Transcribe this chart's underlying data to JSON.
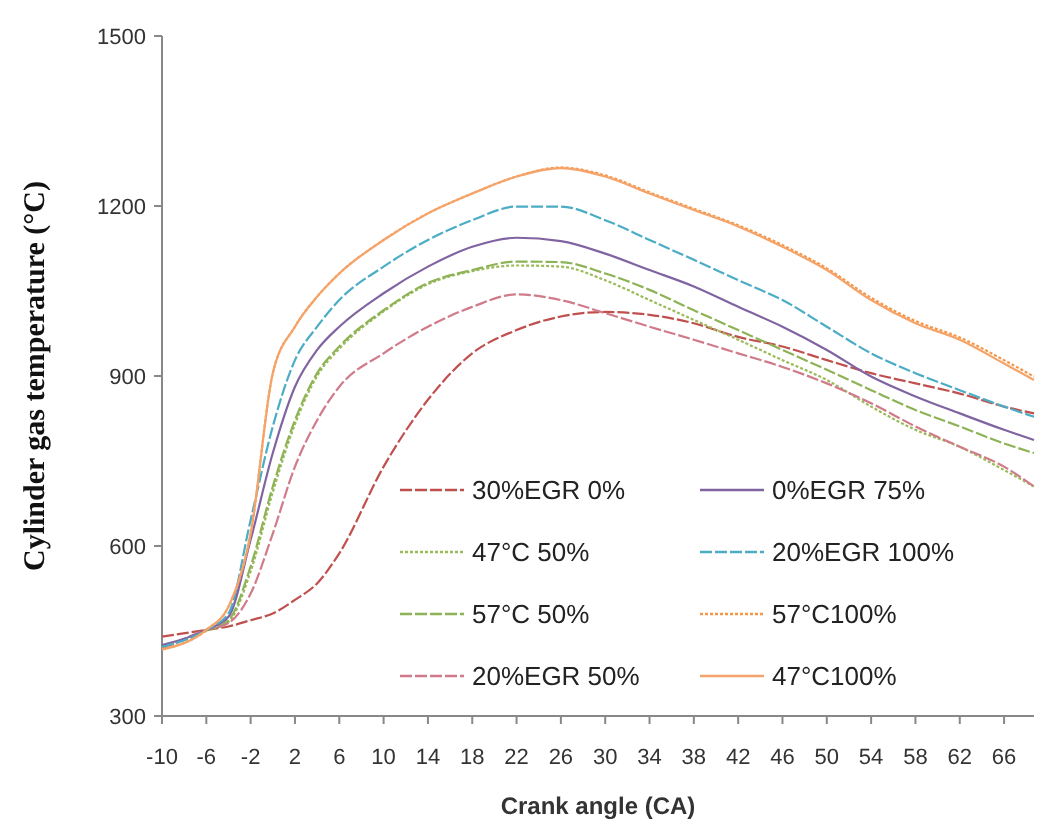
{
  "chart_data": {
    "type": "line",
    "xlabel": "Crank angle (CA)",
    "ylabel": "Cylinder gas temperature (°C)",
    "x": [
      -10,
      -6,
      -4,
      -2,
      0,
      2,
      4,
      6,
      10,
      14,
      18,
      22,
      26,
      30,
      34,
      38,
      42,
      46,
      50,
      54,
      58,
      62,
      66,
      68.7
    ],
    "xlim": [
      -10,
      68.7
    ],
    "xticks": [
      -10,
      -6,
      -2,
      2,
      6,
      10,
      14,
      18,
      22,
      26,
      30,
      34,
      38,
      42,
      46,
      50,
      54,
      58,
      62,
      66
    ],
    "ylim": [
      300,
      1500
    ],
    "yticks": [
      300,
      600,
      900,
      1200,
      1500
    ],
    "grid": false,
    "legend": "bottom right",
    "series": [
      {
        "name": "30%EGR 0%",
        "color": "#c0504d",
        "line_style": "dashed",
        "values": [
          440,
          452,
          458,
          469,
          481,
          505,
          534,
          587,
          740,
          858,
          940,
          981,
          1005,
          1013,
          1008,
          993,
          969,
          952,
          928,
          905,
          887,
          869,
          846,
          834
        ]
      },
      {
        "name": "47°C 50%",
        "color": "#9bbb59",
        "line_style": "dotted",
        "values": [
          420,
          450,
          466,
          555,
          695,
          815,
          900,
          948,
          1014,
          1062,
          1085,
          1095,
          1093,
          1069,
          1034,
          999,
          964,
          928,
          893,
          846,
          805,
          775,
          734,
          705
        ]
      },
      {
        "name": "57°C 50%",
        "color": "#8db356",
        "line_style": "dashed",
        "values": [
          422,
          451,
          469,
          564,
          705,
          822,
          905,
          952,
          1016,
          1064,
          1087,
          1102,
          1101,
          1081,
          1052,
          1016,
          981,
          946,
          911,
          875,
          840,
          811,
          781,
          764
        ]
      },
      {
        "name": "20%EGR 50%",
        "color": "#d07a8a",
        "line_style": "dashed",
        "values": [
          417,
          452,
          464,
          516,
          622,
          740,
          822,
          881,
          940,
          987,
          1022,
          1044,
          1034,
          1011,
          987,
          964,
          940,
          916,
          887,
          852,
          811,
          775,
          740,
          705
        ]
      },
      {
        "name": "0%EGR 75%",
        "color": "#8064a2",
        "line_style": "solid",
        "values": [
          425,
          452,
          475,
          611,
          764,
          881,
          946,
          987,
          1046,
          1093,
          1128,
          1144,
          1138,
          1116,
          1087,
          1058,
          1022,
          987,
          946,
          899,
          864,
          834,
          805,
          787
        ]
      },
      {
        "name": "20%EGR 100%",
        "color": "#4bacc6",
        "line_style": "dashed",
        "values": [
          422,
          452,
          481,
          646,
          811,
          928,
          987,
          1034,
          1093,
          1140,
          1175,
          1199,
          1199,
          1175,
          1140,
          1105,
          1069,
          1034,
          987,
          940,
          905,
          875,
          846,
          828
        ]
      },
      {
        "name": "57°C100%",
        "color": "#f79646",
        "line_style": "dotted",
        "values": [
          418,
          452,
          493,
          622,
          905,
          987,
          1040,
          1081,
          1140,
          1187,
          1222,
          1252,
          1268,
          1254,
          1224,
          1195,
          1166,
          1131,
          1090,
          1038,
          997,
          968,
          928,
          899
        ]
      },
      {
        "name": "47°C100%",
        "color": "#f4a46a",
        "line_style": "solid",
        "values": [
          417,
          452,
          493,
          622,
          905,
          987,
          1040,
          1081,
          1140,
          1187,
          1222,
          1252,
          1267,
          1252,
          1222,
          1193,
          1164,
          1128,
          1087,
          1034,
          993,
          964,
          922,
          893
        ]
      }
    ]
  }
}
